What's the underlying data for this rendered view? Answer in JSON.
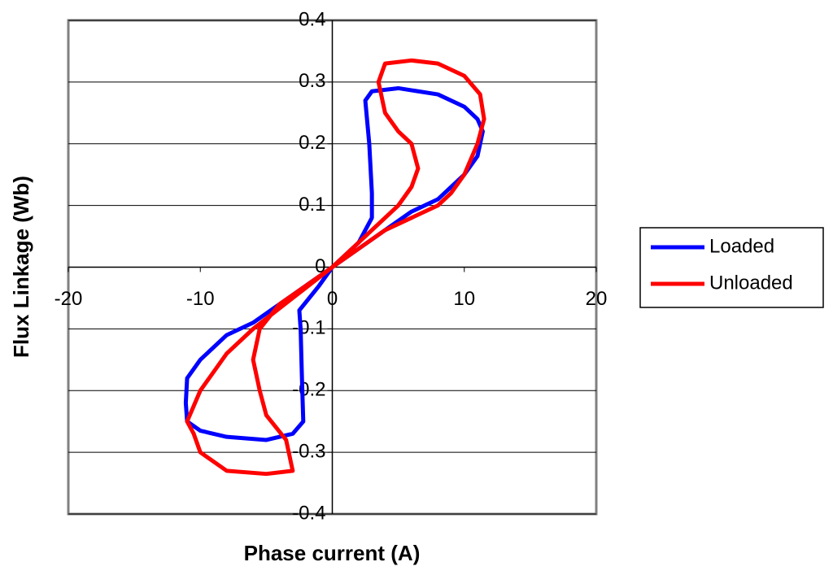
{
  "chart_data": {
    "type": "line",
    "x_label": "Phase current (A)",
    "y_label": "Flux Linkage (Wb)",
    "xlim": [
      -20,
      20
    ],
    "xticks": [
      -20,
      -10,
      0,
      10,
      20
    ],
    "ylim": [
      -0.4,
      0.4
    ],
    "yticks": [
      -0.4,
      -0.3,
      -0.2,
      -0.1,
      0,
      0.1,
      0.2,
      0.3,
      0.4
    ],
    "grid": true,
    "legend": "right",
    "series": [
      {
        "name": "Loaded",
        "color": "#0000ff",
        "x": [
          0,
          2,
          4,
          6,
          8,
          10,
          11,
          11.4,
          11,
          10,
          8,
          5,
          3,
          2.5,
          2.8,
          3,
          3,
          2,
          0,
          -2,
          -4,
          -6,
          -8,
          -10,
          -11,
          -11.1,
          -11,
          -10,
          -8,
          -5,
          -3,
          -2.2,
          -2.3,
          -2.4,
          -2.5,
          -1,
          0
        ],
        "values": [
          0,
          0.03,
          0.06,
          0.09,
          0.11,
          0.15,
          0.18,
          0.22,
          0.24,
          0.26,
          0.28,
          0.29,
          0.285,
          0.27,
          0.2,
          0.12,
          0.08,
          0.04,
          0,
          -0.03,
          -0.06,
          -0.09,
          -0.11,
          -0.15,
          -0.18,
          -0.22,
          -0.25,
          -0.265,
          -0.275,
          -0.28,
          -0.27,
          -0.25,
          -0.18,
          -0.1,
          -0.07,
          -0.03,
          0
        ]
      },
      {
        "name": "Unloaded",
        "color": "#ff0000",
        "x": [
          0,
          2,
          4,
          6,
          8,
          9,
          10,
          11,
          11.5,
          11.2,
          10,
          8,
          6,
          4,
          3.5,
          4,
          5,
          6,
          6.5,
          6,
          5,
          3,
          1,
          0,
          -2,
          -4,
          -5.5,
          -6,
          -5.5,
          -5,
          -3.5,
          -3,
          -5,
          -8,
          -10,
          -10.5,
          -11,
          -10,
          -8,
          -6,
          -3,
          0
        ],
        "values": [
          0,
          0.03,
          0.06,
          0.08,
          0.1,
          0.12,
          0.15,
          0.2,
          0.24,
          0.28,
          0.31,
          0.33,
          0.335,
          0.33,
          0.3,
          0.25,
          0.22,
          0.2,
          0.16,
          0.13,
          0.1,
          0.06,
          0.02,
          0,
          -0.03,
          -0.06,
          -0.1,
          -0.15,
          -0.2,
          -0.24,
          -0.28,
          -0.33,
          -0.335,
          -0.33,
          -0.3,
          -0.27,
          -0.25,
          -0.2,
          -0.14,
          -0.1,
          -0.05,
          0
        ]
      }
    ]
  }
}
